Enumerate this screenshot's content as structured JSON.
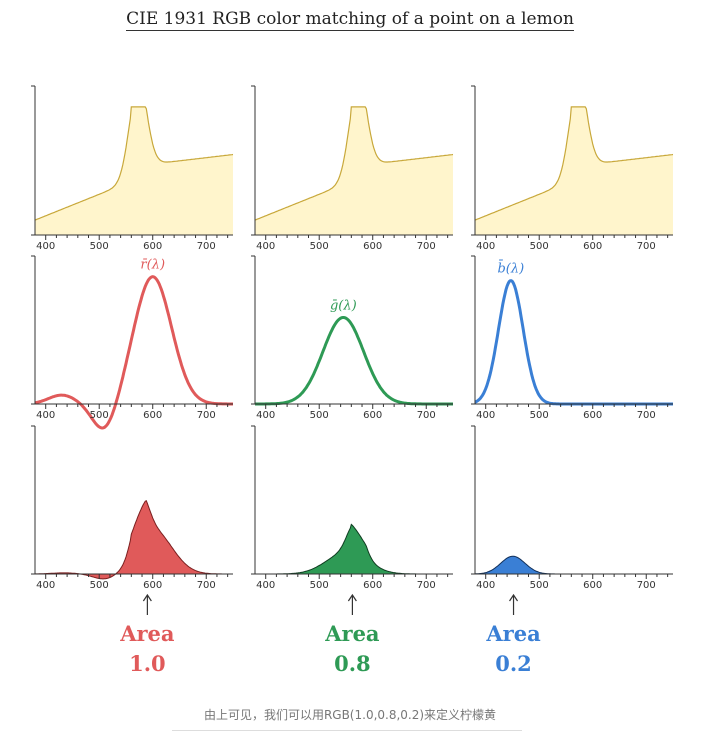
{
  "title": "CIE 1931 RGB color matching of a point on a lemon",
  "caption": "由上可见，我们可以用RGB(1.0,0.8,0.2)来定义柠檬黄",
  "x_ticks": [
    400,
    500,
    600,
    700
  ],
  "x_range": [
    380,
    750
  ],
  "columns": [
    {
      "channel": "r",
      "curve_label": "r̄(λ)",
      "color": "#e05a5a",
      "stroke_dark": "#7a1f1f",
      "area_word": "Area",
      "area_value": "1.0"
    },
    {
      "channel": "g",
      "curve_label": "ḡ(λ)",
      "color": "#2e9a55",
      "stroke_dark": "#0f3d20",
      "area_word": "Area",
      "area_value": "0.8"
    },
    {
      "channel": "b",
      "curve_label": "b̄(λ)",
      "color": "#3a7fd5",
      "stroke_dark": "#12305a",
      "area_word": "Area",
      "area_value": "0.2"
    }
  ],
  "lemon_spectrum": {
    "fill": "#fff5cc",
    "stroke": "#c8a83a"
  }
}
